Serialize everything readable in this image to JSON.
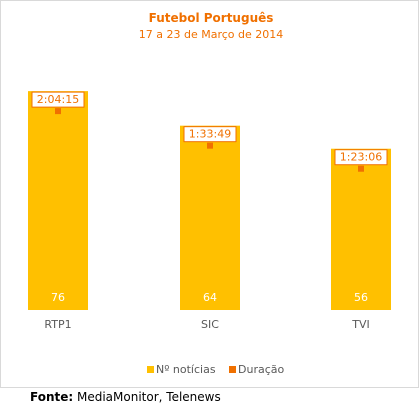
{
  "chart_data": {
    "type": "bar",
    "title": "Futebol Português",
    "subtitle": "17 a 23 de Março de 2014",
    "categories": [
      "RTP1",
      "SIC",
      "TVI"
    ],
    "series": [
      {
        "name": "Nº notícias",
        "values": [
          76,
          64,
          56
        ],
        "color": "#FFC000"
      },
      {
        "name": "Duração",
        "values": [
          "2:04:15",
          "1:33:49",
          "1:23:06"
        ],
        "color": "#F07000"
      }
    ],
    "ylim": [
      0,
      80
    ],
    "grid": false,
    "legend_placement": "bottom"
  },
  "footer": {
    "label": "Fonte:",
    "text": " MediaMonitor, Telenews"
  }
}
